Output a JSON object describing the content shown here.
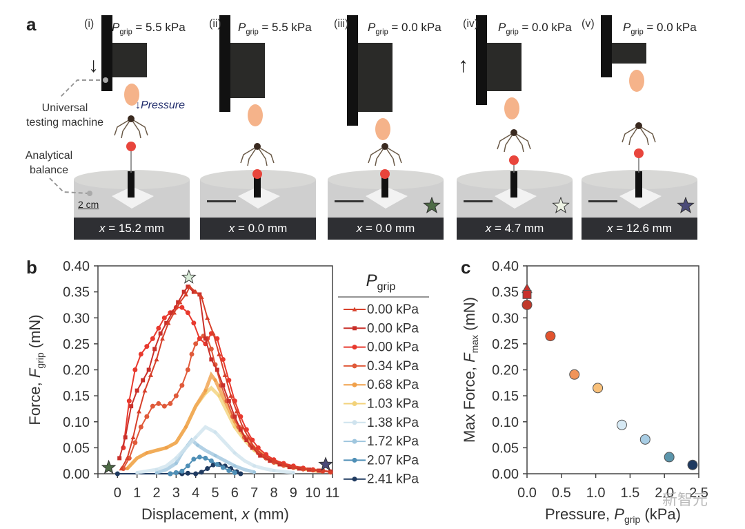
{
  "figure": {
    "panel_a": {
      "letter": "a",
      "annotations": {
        "utm": [
          "Universal",
          "testing machine"
        ],
        "balance": [
          "Analytical",
          "balance"
        ],
        "pressure": "Pressure",
        "scale_bar": "2 cm"
      },
      "frames": [
        {
          "roman": "(i)",
          "p_sym": "P",
          "p_sub": "grip",
          "p_val": " = 5.5 kPa",
          "x_sym": "x",
          "x_val": " = 15.2 mm",
          "arrow": "down",
          "star": null
        },
        {
          "roman": "(ii)",
          "p_sym": "P",
          "p_sub": "grip",
          "p_val": " = 5.5 kPa",
          "x_sym": "x",
          "x_val": " = 0.0 mm",
          "arrow": null,
          "star": null
        },
        {
          "roman": "(iii)",
          "p_sym": "P",
          "p_sub": "grip",
          "p_val": " = 0.0 kPa",
          "x_sym": "x",
          "x_val": " = 0.0 mm",
          "arrow": null,
          "star": "#4d6b45"
        },
        {
          "roman": "(iv)",
          "p_sym": "P",
          "p_sub": "grip",
          "p_val": " = 0.0 kPa",
          "x_sym": "x",
          "x_val": " = 4.7 mm",
          "arrow": "up",
          "star": "#eef3e4"
        },
        {
          "roman": "(v)",
          "p_sym": "P",
          "p_sub": "grip",
          "p_val": " = 0.0 kPa",
          "x_sym": "x",
          "x_val": " = 12.6 mm",
          "arrow": null,
          "star": "#4a4a78"
        }
      ]
    },
    "watermark": "新智元"
  },
  "chart_data": [
    {
      "panel": "b",
      "type": "line",
      "title": "",
      "xlabel": "Displacement, x (mm)",
      "xlabel_parts": {
        "pre": "Displacement, ",
        "sym": "x",
        "post": " (mm)"
      },
      "ylabel_parts": {
        "pre": "Force, ",
        "sym": "F",
        "sub": "grip",
        "post": " (mN)"
      },
      "xlim": [
        -1,
        11
      ],
      "ylim": [
        0,
        0.4
      ],
      "xticks": [
        0,
        1,
        2,
        3,
        4,
        5,
        6,
        7,
        8,
        9,
        10,
        11
      ],
      "yticks": [
        "0.00",
        "0.05",
        "0.10",
        "0.15",
        "0.20",
        "0.25",
        "0.30",
        "0.35",
        "0.40"
      ],
      "grid": false,
      "legend": {
        "title_sym": "P",
        "title_sub": "grip",
        "placement": "right-outside"
      },
      "stars": [
        {
          "x": -0.45,
          "y": 0.012,
          "color": "#4d6b45"
        },
        {
          "x": 3.65,
          "y": 0.378,
          "color": "#d8ecd8"
        },
        {
          "x": 10.65,
          "y": 0.018,
          "color": "#4a4a78"
        }
      ],
      "series": [
        {
          "name": "0.00 kPa",
          "color": "#d7402b",
          "marker": "triangle",
          "x": [
            0.2,
            0.5,
            0.8,
            1.1,
            1.4,
            1.7,
            2.0,
            2.3,
            2.6,
            2.9,
            3.2,
            3.5,
            3.7,
            4.0,
            4.3,
            4.6,
            4.9,
            5.2,
            5.5,
            5.8,
            6.1,
            6.4,
            6.7,
            7.0,
            7.5,
            8.0,
            8.5,
            9.0,
            9.5,
            10.0,
            10.5,
            10.9
          ],
          "y": [
            0.01,
            0.03,
            0.07,
            0.12,
            0.16,
            0.19,
            0.22,
            0.26,
            0.29,
            0.31,
            0.33,
            0.345,
            0.36,
            0.35,
            0.34,
            0.3,
            0.27,
            0.23,
            0.19,
            0.15,
            0.12,
            0.09,
            0.07,
            0.05,
            0.035,
            0.025,
            0.018,
            0.013,
            0.01,
            0.008,
            0.006,
            0.004
          ]
        },
        {
          "name": "0.00 kPa",
          "color": "#c9302a",
          "marker": "square",
          "x": [
            0.1,
            0.4,
            0.7,
            1.0,
            1.3,
            1.6,
            1.9,
            2.2,
            2.5,
            2.8,
            3.1,
            3.4,
            3.6,
            3.9,
            4.2,
            4.5,
            4.8,
            5.1,
            5.4,
            5.7,
            6.0,
            6.3,
            6.6,
            6.9,
            7.3,
            7.8,
            8.3,
            8.8,
            9.3,
            9.8,
            10.3,
            10.9
          ],
          "y": [
            0.03,
            0.07,
            0.13,
            0.16,
            0.18,
            0.2,
            0.24,
            0.27,
            0.29,
            0.31,
            0.33,
            0.35,
            0.36,
            0.35,
            0.345,
            0.26,
            0.22,
            0.2,
            0.17,
            0.14,
            0.11,
            0.085,
            0.065,
            0.05,
            0.035,
            0.025,
            0.018,
            0.013,
            0.01,
            0.008,
            0.006,
            0.004
          ]
        },
        {
          "name": "0.00 kPa",
          "color": "#e8392e",
          "marker": "circle",
          "x": [
            0.3,
            0.6,
            0.9,
            1.2,
            1.5,
            1.8,
            2.1,
            2.4,
            2.7,
            3.0,
            3.3,
            3.6,
            3.9,
            4.2,
            4.5,
            4.8,
            5.1,
            5.4,
            5.7,
            6.0,
            6.3,
            6.6,
            6.9,
            7.2,
            7.6,
            8.0,
            8.5,
            9.0,
            9.5,
            10.0,
            10.5,
            10.9
          ],
          "y": [
            0.05,
            0.14,
            0.2,
            0.23,
            0.245,
            0.26,
            0.28,
            0.3,
            0.31,
            0.32,
            0.32,
            0.31,
            0.29,
            0.26,
            0.25,
            0.27,
            0.26,
            0.22,
            0.18,
            0.14,
            0.11,
            0.085,
            0.065,
            0.05,
            0.037,
            0.027,
            0.02,
            0.015,
            0.011,
            0.008,
            0.006,
            0.004
          ]
        },
        {
          "name": "0.34 kPa",
          "color": "#e05a3a",
          "marker": "circle",
          "x": [
            0.3,
            0.6,
            0.9,
            1.2,
            1.5,
            1.8,
            2.1,
            2.4,
            2.7,
            3.0,
            3.3,
            3.6,
            3.8,
            4.0,
            4.2,
            4.4,
            4.6,
            4.8,
            5.0,
            5.3,
            5.6,
            5.9,
            6.2,
            6.5,
            6.8,
            7.2,
            7.6,
            8.0,
            8.5,
            9.0,
            9.5,
            10.0,
            10.5,
            10.9
          ],
          "y": [
            0.01,
            0.03,
            0.06,
            0.09,
            0.11,
            0.13,
            0.135,
            0.13,
            0.135,
            0.15,
            0.17,
            0.2,
            0.23,
            0.25,
            0.26,
            0.265,
            0.26,
            0.24,
            0.21,
            0.17,
            0.14,
            0.11,
            0.09,
            0.07,
            0.055,
            0.04,
            0.03,
            0.022,
            0.016,
            0.012,
            0.009,
            0.007,
            0.005,
            0.003
          ]
        },
        {
          "name": "0.68 kPa",
          "color": "#f0a04a",
          "marker": "circle",
          "x": [
            0.5,
            1.0,
            1.5,
            2.0,
            2.5,
            3.0,
            3.5,
            4.0,
            4.5,
            4.8,
            5.0,
            5.5,
            6.0,
            6.5,
            7.0,
            7.5,
            8.0,
            8.5,
            9.0,
            9.5,
            10.0,
            10.5
          ],
          "y": [
            0.01,
            0.03,
            0.04,
            0.045,
            0.05,
            0.06,
            0.09,
            0.13,
            0.16,
            0.19,
            0.18,
            0.14,
            0.1,
            0.07,
            0.05,
            0.035,
            0.025,
            0.018,
            0.013,
            0.01,
            0.007,
            0.005
          ]
        },
        {
          "name": "1.03 kPa",
          "color": "#f2d27a",
          "marker": "circle",
          "x": [
            0.5,
            1.0,
            1.5,
            2.0,
            2.5,
            3.0,
            3.5,
            4.0,
            4.5,
            4.8,
            5.2,
            5.6,
            6.0,
            6.5,
            7.0,
            7.5,
            8.0,
            8.5,
            9.0,
            9.5,
            10.0,
            10.5
          ],
          "y": [
            0.01,
            0.03,
            0.04,
            0.045,
            0.05,
            0.06,
            0.09,
            0.13,
            0.155,
            0.165,
            0.15,
            0.12,
            0.09,
            0.065,
            0.045,
            0.032,
            0.022,
            0.016,
            0.012,
            0.009,
            0.006,
            0.004
          ]
        },
        {
          "name": "1.38 kPa",
          "color": "#cfe3ee",
          "marker": "circle",
          "x": [
            1.0,
            1.5,
            2.0,
            2.5,
            3.0,
            3.5,
            4.0,
            4.5,
            5.0,
            5.5,
            6.0,
            6.5,
            7.0,
            7.5,
            8.0,
            8.5,
            9.0
          ],
          "y": [
            0.002,
            0.005,
            0.008,
            0.015,
            0.03,
            0.05,
            0.07,
            0.09,
            0.08,
            0.06,
            0.04,
            0.025,
            0.015,
            0.01,
            0.006,
            0.004,
            0.002
          ]
        },
        {
          "name": "1.72 kPa",
          "color": "#9fc6de",
          "marker": "circle",
          "x": [
            2.0,
            2.5,
            3.0,
            3.3,
            3.6,
            3.8,
            4.1,
            4.5,
            5.0,
            5.5,
            6.0,
            6.5,
            7.0
          ],
          "y": [
            0.002,
            0.008,
            0.02,
            0.04,
            0.055,
            0.065,
            0.055,
            0.045,
            0.035,
            0.025,
            0.015,
            0.008,
            0.003
          ]
        },
        {
          "name": "2.07 kPa",
          "color": "#4f8fb6",
          "marker": "circle",
          "x": [
            2.7,
            3.0,
            3.3,
            3.6,
            3.9,
            4.2,
            4.5,
            4.8,
            5.1,
            5.4,
            5.7,
            6.0
          ],
          "y": [
            0.0,
            0.002,
            0.005,
            0.015,
            0.028,
            0.032,
            0.03,
            0.025,
            0.018,
            0.012,
            0.006,
            0.002
          ]
        },
        {
          "name": "2.41 kPa",
          "color": "#1f3a60",
          "marker": "circle",
          "x": [
            0.0,
            2.7,
            3.0,
            3.3,
            3.6,
            4.0,
            4.3,
            4.6,
            4.9,
            5.2,
            5.5,
            5.8,
            6.1,
            6.3
          ],
          "y": [
            0.0,
            0.0,
            0.002,
            0.0,
            0.001,
            0.0,
            0.003,
            0.01,
            0.017,
            0.018,
            0.015,
            0.01,
            0.004,
            0.0
          ]
        }
      ]
    },
    {
      "panel": "c",
      "type": "scatter",
      "title": "",
      "xlabel_parts": {
        "pre": "Pressure, ",
        "sym": "P",
        "sub": "grip",
        "post": " (kPa)"
      },
      "ylabel_parts": {
        "pre": "Max Force, ",
        "sym": "F",
        "sub": "max",
        "post": " (mN)"
      },
      "xlim": [
        0,
        2.5
      ],
      "ylim": [
        0,
        0.4
      ],
      "xticks": [
        "0.0",
        "0.5",
        "1.0",
        "1.5",
        "2.0",
        "2.5"
      ],
      "yticks": [
        "0.00",
        "0.05",
        "0.10",
        "0.15",
        "0.20",
        "0.25",
        "0.30",
        "0.35",
        "0.40"
      ],
      "grid": false,
      "points": [
        {
          "x": 0.0,
          "y": 0.356,
          "color": "#c9302a",
          "marker": "triangle"
        },
        {
          "x": 0.0,
          "y": 0.345,
          "color": "#c9302a",
          "marker": "square"
        },
        {
          "x": 0.0,
          "y": 0.325,
          "color": "#c0392b",
          "marker": "circle"
        },
        {
          "x": 0.34,
          "y": 0.265,
          "color": "#e2532e",
          "marker": "circle"
        },
        {
          "x": 0.69,
          "y": 0.191,
          "color": "#f0945a",
          "marker": "circle"
        },
        {
          "x": 1.03,
          "y": 0.165,
          "color": "#f8c07a",
          "marker": "circle"
        },
        {
          "x": 1.38,
          "y": 0.094,
          "color": "#d6e9f4",
          "marker": "circle"
        },
        {
          "x": 1.72,
          "y": 0.066,
          "color": "#a8cde4",
          "marker": "circle"
        },
        {
          "x": 2.07,
          "y": 0.032,
          "color": "#5b95ab",
          "marker": "circle"
        },
        {
          "x": 2.41,
          "y": 0.017,
          "color": "#1f3a60",
          "marker": "circle"
        }
      ]
    }
  ]
}
